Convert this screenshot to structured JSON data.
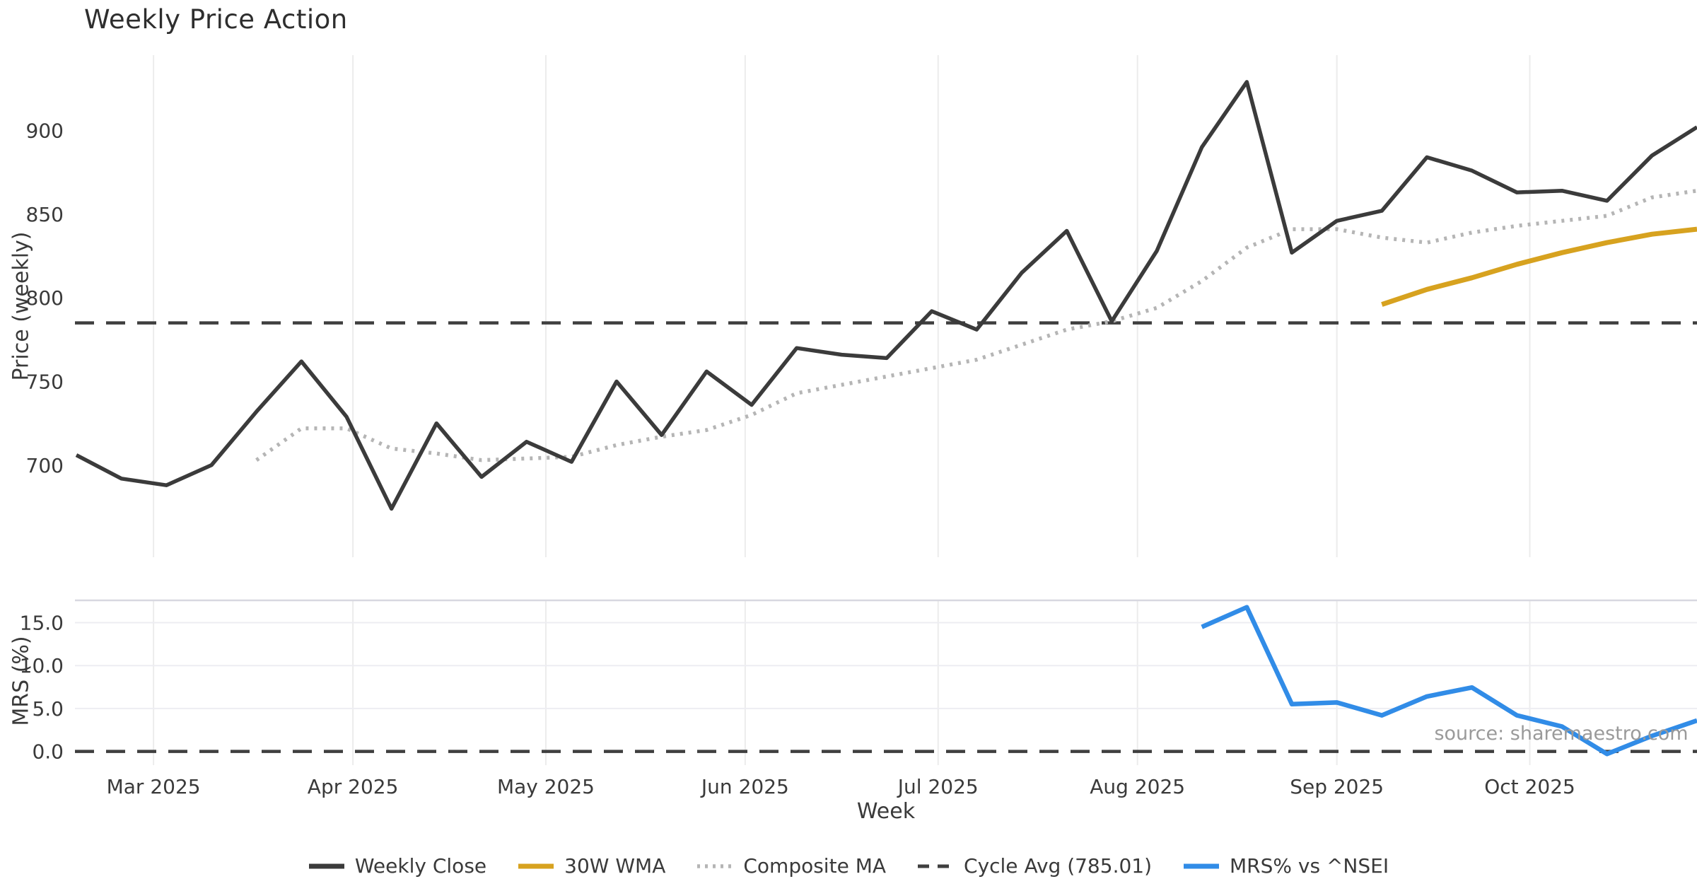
{
  "title": "Weekly Price Action",
  "axes": {
    "price_ylabel": "Price (weekly)",
    "mrs_ylabel": "MRS (%)",
    "xlabel": "Week"
  },
  "source_note": "source: sharemaestro.com",
  "colors": {
    "close": "#3b3b3b",
    "wma": "#d7a21f",
    "composite": "#b5b5b5",
    "cycle_avg": "#3f3f3f",
    "mrs": "#318ce7",
    "gridline": "#ececec",
    "mrs_top_spine": "#d8d8e0",
    "tick_text": "#3a3a3a",
    "source_text": "#9a9a9a"
  },
  "chart_data": [
    {
      "type": "line",
      "panel": "price",
      "title": "Weekly Price Action",
      "ylabel": "Price (weekly)",
      "ylim": [
        645,
        945
      ],
      "yticks": [
        700,
        750,
        800,
        850,
        900
      ],
      "ytick_labels": [
        "700",
        "750",
        "800",
        "850",
        "900"
      ],
      "grid": "vertical-months-only",
      "n_points": 37,
      "x_ticks": [
        {
          "label": "Mar 2025",
          "index": 1.714
        },
        {
          "label": "Apr 2025",
          "index": 6.143
        },
        {
          "label": "May 2025",
          "index": 10.429
        },
        {
          "label": "Jun 2025",
          "index": 14.857
        },
        {
          "label": "Jul 2025",
          "index": 19.143
        },
        {
          "label": "Aug 2025",
          "index": 23.571
        },
        {
          "label": "Sep 2025",
          "index": 28.0
        },
        {
          "label": "Oct 2025",
          "index": 32.286
        }
      ],
      "series": [
        {
          "key": "weekly-close",
          "name": "Weekly Close",
          "color": "#3b3b3b",
          "style": "solid",
          "width": 5.5,
          "start_index": 0,
          "values": [
            706,
            692,
            688,
            700,
            732,
            762,
            729,
            674,
            725,
            693,
            714,
            702,
            750,
            718,
            756,
            736,
            770,
            766,
            764,
            792,
            781,
            815,
            840,
            786,
            828,
            890,
            929,
            827,
            846,
            852,
            884,
            876,
            863,
            864,
            858,
            885,
            902
          ]
        },
        {
          "key": "wma-30w",
          "name": "30W WMA",
          "color": "#d7a21f",
          "style": "solid",
          "width": 7,
          "start_index": 29,
          "values": [
            796,
            805,
            812,
            820,
            827,
            833,
            838,
            841
          ]
        },
        {
          "key": "composite-ma",
          "name": "Composite MA",
          "color": "#b5b5b5",
          "style": "dotted",
          "width": 5.5,
          "start_index": 4,
          "values": [
            703,
            722,
            722,
            710,
            707,
            703,
            704,
            705,
            712,
            717,
            721,
            730,
            743,
            748,
            753,
            758,
            763,
            772,
            781,
            786,
            794,
            810,
            830,
            841,
            841,
            836,
            833,
            839,
            843,
            846,
            849,
            860,
            864
          ]
        },
        {
          "key": "cycle-avg",
          "name": "Cycle Avg (785.01)",
          "color": "#3f3f3f",
          "style": "dashed",
          "width": 4.5,
          "constant": 785.01
        }
      ]
    },
    {
      "type": "line",
      "panel": "mrs",
      "ylabel": "MRS (%)",
      "ylim": [
        -1.6,
        17.6
      ],
      "yticks": [
        0,
        5,
        10,
        15
      ],
      "ytick_labels": [
        "0.0",
        "5.0",
        "10.0",
        "15.0"
      ],
      "grid": "horizontal-and-vertical-months",
      "series": [
        {
          "key": "mrs-nsei",
          "name": "MRS% vs ^NSEI",
          "color": "#318ce7",
          "style": "solid",
          "width": 6.5,
          "start_index": 25,
          "values": [
            14.5,
            16.8,
            5.5,
            5.7,
            4.2,
            6.4,
            7.45,
            4.2,
            2.9,
            -0.3,
            1.8,
            3.6
          ]
        },
        {
          "key": "mrs-zero",
          "name": "MRS zero line",
          "color": "#3f3f3f",
          "style": "dashed",
          "width": 4.5,
          "constant": 0
        }
      ]
    }
  ],
  "legend": [
    {
      "label": "Weekly Close",
      "color": "#3b3b3b",
      "style": "solid"
    },
    {
      "label": "30W WMA",
      "color": "#d7a21f",
      "style": "solid"
    },
    {
      "label": "Composite MA",
      "color": "#b5b5b5",
      "style": "dotted"
    },
    {
      "label": "Cycle Avg (785.01)",
      "color": "#3f3f3f",
      "style": "dashed"
    },
    {
      "label": "MRS% vs ^NSEI",
      "color": "#318ce7",
      "style": "solid"
    }
  ]
}
